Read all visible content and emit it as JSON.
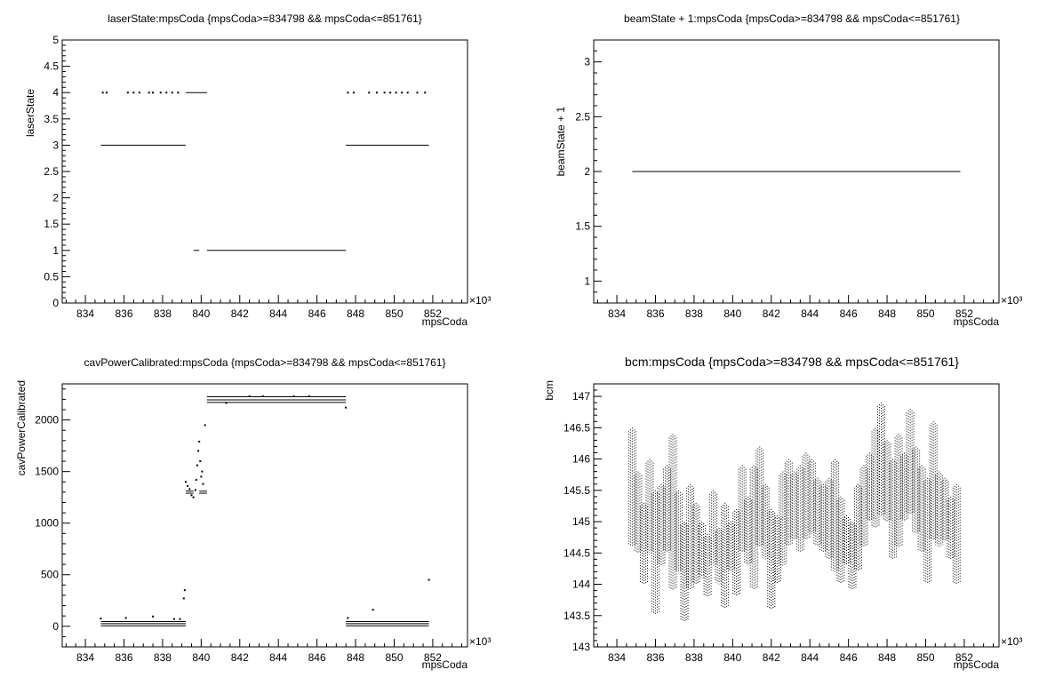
{
  "chart_data": [
    {
      "type": "scatter",
      "title": "laserState:mpsCoda {mpsCoda>=834798 && mpsCoda<=851761}",
      "xlabel": "mpsCoda",
      "ylabel": "laserState",
      "x_multiplier": "×10³",
      "xlim": [
        832.8,
        853.8
      ],
      "ylim": [
        0,
        5
      ],
      "x_ticks": [
        834,
        836,
        838,
        840,
        842,
        844,
        846,
        848,
        850,
        852
      ],
      "y_ticks": [
        0,
        0.5,
        1,
        1.5,
        2,
        2.5,
        3,
        3.5,
        4,
        4.5,
        5
      ],
      "grid": false,
      "segments": [
        {
          "x1": 834.8,
          "x2": 839.2,
          "y": 3
        },
        {
          "x1": 847.5,
          "x2": 851.8,
          "y": 3
        },
        {
          "x1": 840.3,
          "x2": 847.5,
          "y": 1
        },
        {
          "x1": 839.6,
          "x2": 839.9,
          "y": 1
        },
        {
          "x1": 839.2,
          "x2": 840.3,
          "y": 4
        }
      ],
      "points": [
        {
          "x": 834.9,
          "y": 4
        },
        {
          "x": 835.1,
          "y": 4
        },
        {
          "x": 836.2,
          "y": 4
        },
        {
          "x": 836.5,
          "y": 4
        },
        {
          "x": 836.8,
          "y": 4
        },
        {
          "x": 837.3,
          "y": 4
        },
        {
          "x": 837.5,
          "y": 4
        },
        {
          "x": 837.9,
          "y": 4
        },
        {
          "x": 838.2,
          "y": 4
        },
        {
          "x": 838.5,
          "y": 4
        },
        {
          "x": 838.8,
          "y": 4
        },
        {
          "x": 847.6,
          "y": 4
        },
        {
          "x": 847.9,
          "y": 4
        },
        {
          "x": 848.7,
          "y": 4
        },
        {
          "x": 849.1,
          "y": 4
        },
        {
          "x": 849.5,
          "y": 4
        },
        {
          "x": 849.8,
          "y": 4
        },
        {
          "x": 850.1,
          "y": 4
        },
        {
          "x": 850.4,
          "y": 4
        },
        {
          "x": 850.7,
          "y": 4
        },
        {
          "x": 851.2,
          "y": 4
        },
        {
          "x": 851.6,
          "y": 4
        }
      ]
    },
    {
      "type": "scatter",
      "title": "beamState + 1:mpsCoda {mpsCoda>=834798 && mpsCoda<=851761}",
      "xlabel": "mpsCoda",
      "ylabel": "beamState + 1",
      "x_multiplier": "×10³",
      "xlim": [
        832.8,
        853.8
      ],
      "ylim": [
        0.8,
        3.2
      ],
      "x_ticks": [
        834,
        836,
        838,
        840,
        842,
        844,
        846,
        848,
        850,
        852
      ],
      "y_ticks": [
        1,
        1.5,
        2,
        2.5,
        3
      ],
      "grid": false,
      "segments": [
        {
          "x1": 834.8,
          "x2": 851.8,
          "y": 2
        }
      ],
      "points": []
    },
    {
      "type": "scatter",
      "title": "cavPowerCalibrated:mpsCoda {mpsCoda>=834798 && mpsCoda<=851761}",
      "xlabel": "mpsCoda",
      "ylabel": "cavPowerCalibrated",
      "x_multiplier": "×10³",
      "xlim": [
        832.8,
        853.8
      ],
      "ylim": [
        -200,
        2350
      ],
      "x_ticks": [
        834,
        836,
        838,
        840,
        842,
        844,
        846,
        848,
        850,
        852
      ],
      "y_ticks": [
        0,
        500,
        1000,
        1500,
        2000
      ],
      "grid": false,
      "segments": [
        {
          "x1": 834.8,
          "x2": 839.2,
          "y": 45
        },
        {
          "x1": 834.8,
          "x2": 839.2,
          "y": 25
        },
        {
          "x1": 834.8,
          "x2": 839.2,
          "y": 5
        },
        {
          "x1": 847.5,
          "x2": 851.8,
          "y": 45
        },
        {
          "x1": 847.5,
          "x2": 851.8,
          "y": 25
        },
        {
          "x1": 847.5,
          "x2": 851.8,
          "y": 5
        },
        {
          "x1": 840.3,
          "x2": 847.5,
          "y": 2225
        },
        {
          "x1": 840.3,
          "x2": 847.5,
          "y": 2195
        },
        {
          "x1": 840.3,
          "x2": 847.5,
          "y": 2170
        },
        {
          "x1": 839.2,
          "x2": 839.6,
          "y": 1290
        },
        {
          "x1": 839.2,
          "x2": 839.6,
          "y": 1310
        },
        {
          "x1": 839.9,
          "x2": 840.3,
          "y": 1290
        },
        {
          "x1": 839.9,
          "x2": 840.3,
          "y": 1310
        }
      ],
      "points": [
        {
          "x": 834.8,
          "y": 75
        },
        {
          "x": 836.1,
          "y": 80
        },
        {
          "x": 837.5,
          "y": 95
        },
        {
          "x": 838.6,
          "y": 70
        },
        {
          "x": 838.9,
          "y": 70
        },
        {
          "x": 839.1,
          "y": 270
        },
        {
          "x": 839.15,
          "y": 350
        },
        {
          "x": 839.2,
          "y": 1400
        },
        {
          "x": 839.3,
          "y": 1360
        },
        {
          "x": 839.4,
          "y": 1330
        },
        {
          "x": 839.5,
          "y": 1270
        },
        {
          "x": 839.6,
          "y": 1250
        },
        {
          "x": 839.7,
          "y": 1320
        },
        {
          "x": 839.75,
          "y": 1420
        },
        {
          "x": 839.8,
          "y": 1560
        },
        {
          "x": 839.85,
          "y": 1700
        },
        {
          "x": 839.9,
          "y": 1790
        },
        {
          "x": 839.95,
          "y": 1600
        },
        {
          "x": 840.0,
          "y": 1450
        },
        {
          "x": 840.05,
          "y": 1500
        },
        {
          "x": 840.1,
          "y": 1380
        },
        {
          "x": 840.2,
          "y": 1950
        },
        {
          "x": 841.3,
          "y": 2165
        },
        {
          "x": 842.5,
          "y": 2230
        },
        {
          "x": 843.2,
          "y": 2230
        },
        {
          "x": 844.8,
          "y": 2230
        },
        {
          "x": 845.6,
          "y": 2230
        },
        {
          "x": 847.5,
          "y": 2120
        },
        {
          "x": 847.6,
          "y": 80
        },
        {
          "x": 848.9,
          "y": 160
        },
        {
          "x": 851.8,
          "y": 450
        }
      ]
    },
    {
      "type": "scatter",
      "title": "bcm:mpsCoda {mpsCoda>=834798 && mpsCoda<=851761}",
      "xlabel": "mpsCoda",
      "ylabel": "bcm",
      "x_multiplier": "×10³",
      "xlim": [
        832.8,
        853.8
      ],
      "ylim": [
        143,
        147.2
      ],
      "x_ticks": [
        834,
        836,
        838,
        840,
        842,
        844,
        846,
        848,
        850,
        852
      ],
      "y_ticks": [
        143,
        143.5,
        144,
        144.5,
        145,
        145.5,
        146,
        146.5,
        147
      ],
      "grid": false,
      "bands": [
        {
          "x": 834.8,
          "lo": 144.6,
          "hi": 146.5
        },
        {
          "x": 835.1,
          "lo": 144.5,
          "hi": 145.8
        },
        {
          "x": 835.4,
          "lo": 144.0,
          "hi": 145.3
        },
        {
          "x": 835.7,
          "lo": 144.5,
          "hi": 146.0
        },
        {
          "x": 836.0,
          "lo": 143.5,
          "hi": 145.5
        },
        {
          "x": 836.3,
          "lo": 144.3,
          "hi": 145.6
        },
        {
          "x": 836.6,
          "lo": 144.5,
          "hi": 145.9
        },
        {
          "x": 836.9,
          "lo": 143.9,
          "hi": 146.4
        },
        {
          "x": 837.2,
          "lo": 144.2,
          "hi": 145.5
        },
        {
          "x": 837.5,
          "lo": 143.4,
          "hi": 145.0
        },
        {
          "x": 837.8,
          "lo": 143.9,
          "hi": 145.6
        },
        {
          "x": 838.1,
          "lo": 144.0,
          "hi": 145.3
        },
        {
          "x": 838.4,
          "lo": 144.1,
          "hi": 145.0
        },
        {
          "x": 838.7,
          "lo": 143.8,
          "hi": 144.8
        },
        {
          "x": 839.0,
          "lo": 144.3,
          "hi": 145.5
        },
        {
          "x": 839.3,
          "lo": 144.0,
          "hi": 144.9
        },
        {
          "x": 839.6,
          "lo": 143.6,
          "hi": 145.3
        },
        {
          "x": 839.9,
          "lo": 144.2,
          "hi": 145.0
        },
        {
          "x": 840.2,
          "lo": 143.8,
          "hi": 145.2
        },
        {
          "x": 840.5,
          "lo": 144.5,
          "hi": 145.9
        },
        {
          "x": 840.8,
          "lo": 144.3,
          "hi": 145.4
        },
        {
          "x": 841.1,
          "lo": 143.9,
          "hi": 145.9
        },
        {
          "x": 841.4,
          "lo": 144.6,
          "hi": 146.2
        },
        {
          "x": 841.7,
          "lo": 144.4,
          "hi": 145.6
        },
        {
          "x": 842.0,
          "lo": 143.6,
          "hi": 145.2
        },
        {
          "x": 842.3,
          "lo": 144.0,
          "hi": 145.1
        },
        {
          "x": 842.6,
          "lo": 144.3,
          "hi": 145.8
        },
        {
          "x": 842.9,
          "lo": 144.6,
          "hi": 146.0
        },
        {
          "x": 843.2,
          "lo": 144.7,
          "hi": 145.8
        },
        {
          "x": 843.5,
          "lo": 144.5,
          "hi": 145.9
        },
        {
          "x": 843.8,
          "lo": 144.7,
          "hi": 146.1
        },
        {
          "x": 844.1,
          "lo": 144.8,
          "hi": 146.0
        },
        {
          "x": 844.4,
          "lo": 144.6,
          "hi": 145.7
        },
        {
          "x": 844.7,
          "lo": 144.5,
          "hi": 145.6
        },
        {
          "x": 845.0,
          "lo": 144.4,
          "hi": 145.7
        },
        {
          "x": 845.3,
          "lo": 144.2,
          "hi": 146.0
        },
        {
          "x": 845.6,
          "lo": 144.0,
          "hi": 145.4
        },
        {
          "x": 845.9,
          "lo": 144.3,
          "hi": 145.1
        },
        {
          "x": 846.2,
          "lo": 143.9,
          "hi": 145.0
        },
        {
          "x": 846.5,
          "lo": 144.2,
          "hi": 145.6
        },
        {
          "x": 846.8,
          "lo": 144.6,
          "hi": 145.9
        },
        {
          "x": 847.1,
          "lo": 145.0,
          "hi": 146.1
        },
        {
          "x": 847.4,
          "lo": 144.9,
          "hi": 146.5
        },
        {
          "x": 847.7,
          "lo": 145.1,
          "hi": 146.9
        },
        {
          "x": 848.0,
          "lo": 145.0,
          "hi": 146.3
        },
        {
          "x": 848.3,
          "lo": 144.4,
          "hi": 146.0
        },
        {
          "x": 848.6,
          "lo": 144.6,
          "hi": 146.4
        },
        {
          "x": 848.9,
          "lo": 145.0,
          "hi": 146.1
        },
        {
          "x": 849.2,
          "lo": 145.1,
          "hi": 146.8
        },
        {
          "x": 849.5,
          "lo": 144.8,
          "hi": 146.2
        },
        {
          "x": 849.8,
          "lo": 144.5,
          "hi": 145.9
        },
        {
          "x": 850.1,
          "lo": 144.0,
          "hi": 145.7
        },
        {
          "x": 850.4,
          "lo": 144.7,
          "hi": 146.6
        },
        {
          "x": 850.7,
          "lo": 144.6,
          "hi": 145.8
        },
        {
          "x": 851.0,
          "lo": 144.7,
          "hi": 145.7
        },
        {
          "x": 851.3,
          "lo": 144.4,
          "hi": 145.4
        },
        {
          "x": 851.6,
          "lo": 144.0,
          "hi": 145.6
        }
      ]
    }
  ]
}
